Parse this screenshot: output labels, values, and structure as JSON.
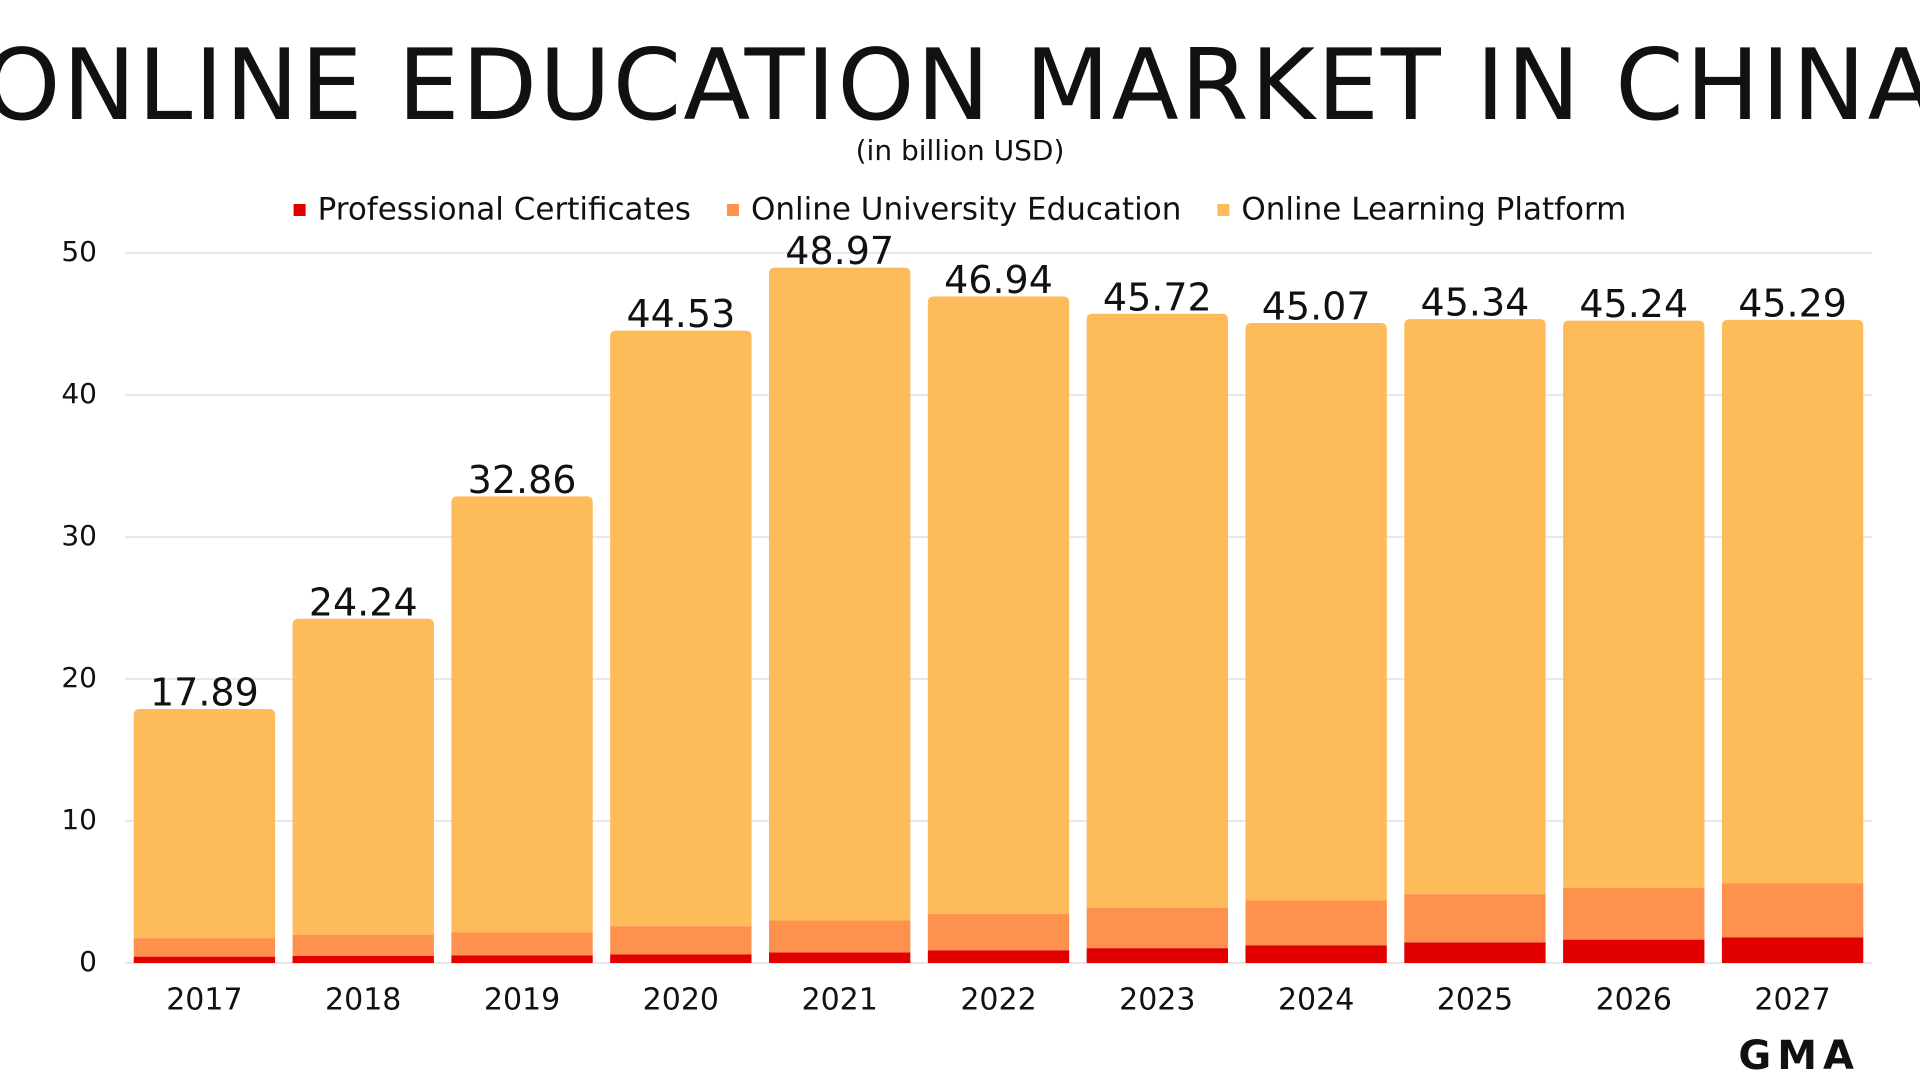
{
  "chart_data": {
    "type": "stacked_bar",
    "title": "ONLINE EDUCATION MARKET IN CHINA",
    "subtitle": "(in billion USD)",
    "logo": "GMA",
    "categories": [
      "2017",
      "2018",
      "2019",
      "2020",
      "2021",
      "2022",
      "2023",
      "2024",
      "2025",
      "2026",
      "2027"
    ],
    "series": [
      {
        "name": "Professional Certificates",
        "color": "#e00000",
        "values": [
          0.45,
          0.5,
          0.55,
          0.6,
          0.75,
          0.9,
          1.05,
          1.25,
          1.45,
          1.65,
          1.8
        ]
      },
      {
        "name": "Online University Education",
        "color": "#fe914d",
        "values": [
          1.3,
          1.5,
          1.6,
          2.0,
          2.25,
          2.55,
          2.85,
          3.15,
          3.4,
          3.65,
          3.8
        ]
      },
      {
        "name": "Online Learning Platform",
        "color": "#fdbb5a",
        "values": [
          16.14,
          22.24,
          30.71,
          41.93,
          45.97,
          43.49,
          41.82,
          40.67,
          40.49,
          39.94,
          39.69
        ]
      }
    ],
    "totals": [
      17.89,
      24.24,
      32.86,
      44.53,
      48.97,
      46.94,
      45.72,
      45.07,
      45.34,
      45.24,
      45.29
    ],
    "ylim": [
      0,
      50
    ],
    "yticks": [
      0,
      10,
      20,
      30,
      40,
      50
    ],
    "grid": true,
    "legend": "top"
  }
}
